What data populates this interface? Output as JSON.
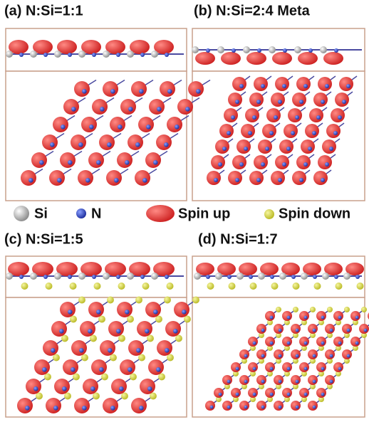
{
  "panels": [
    {
      "label": "(a) N:Si=1:1"
    },
    {
      "label": "(b) N:Si=2:4 Meta"
    },
    {
      "label": "(c) N:Si=1:5"
    },
    {
      "label": "(d) N:Si=1:7"
    }
  ],
  "legend": [
    "Si",
    "N",
    "Spin up",
    "Spin down"
  ]
}
